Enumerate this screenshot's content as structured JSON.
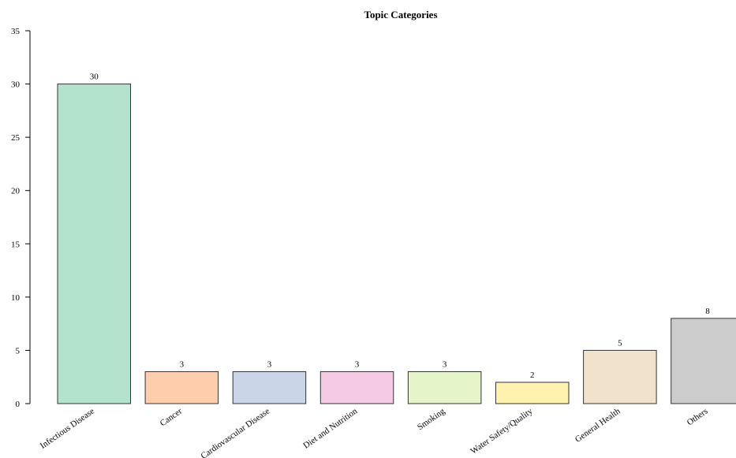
{
  "chart_data": {
    "type": "bar",
    "title": "Topic Categories",
    "xlabel": "",
    "ylabel": "",
    "ylim": [
      0,
      35
    ],
    "yticks": [
      0,
      5,
      10,
      15,
      20,
      25,
      30,
      35
    ],
    "grid": false,
    "categories": [
      "Infectious Disease",
      "Cancer",
      "Cardiovascular Disease",
      "Diet and Nutrition",
      "Smoking",
      "Water Safety/Quality",
      "General Health",
      "Others"
    ],
    "values": [
      30,
      3,
      3,
      3,
      3,
      2,
      5,
      8
    ],
    "colors": [
      "#b3e2cd",
      "#fdcdac",
      "#cbd5e8",
      "#f4cae4",
      "#e6f5c9",
      "#fff2ae",
      "#f1e2cc",
      "#cccccc"
    ],
    "bar_outline_color": "#333333"
  }
}
